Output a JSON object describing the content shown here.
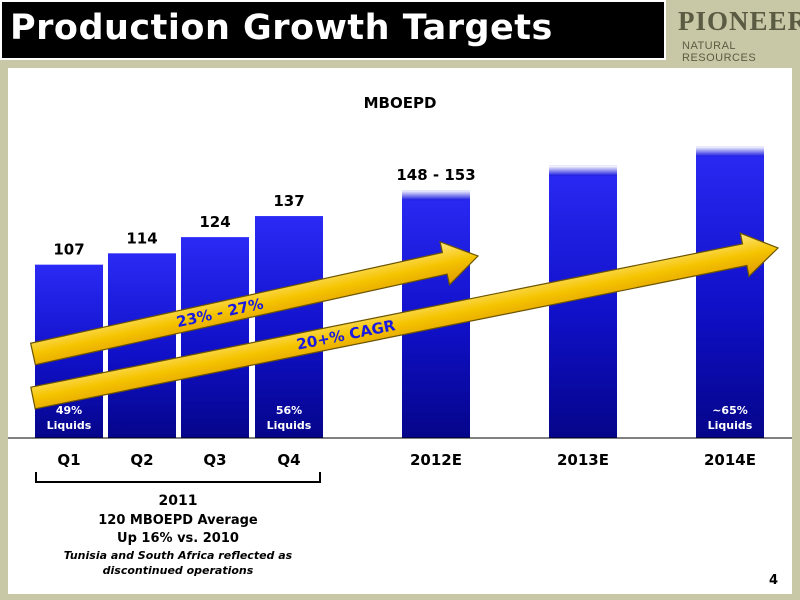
{
  "header": {
    "title": "Production Growth Targets",
    "logo_main": "PIONEER",
    "logo_sub": "NATURAL RESOURCES"
  },
  "chart_data": {
    "type": "bar",
    "title": "MBOEPD",
    "categories": [
      "Q1",
      "Q2",
      "Q3",
      "Q4",
      "2012E",
      "2013E",
      "2014E"
    ],
    "values": [
      107,
      114,
      124,
      137,
      153,
      168,
      180
    ],
    "value_labels": [
      "107",
      "114",
      "124",
      "137",
      "148 - 153",
      "",
      ""
    ],
    "range_2012E": [
      148,
      153
    ],
    "liquids_notes": [
      {
        "category": "Q1",
        "lines": [
          "49%",
          "Liquids"
        ]
      },
      {
        "category": "Q4",
        "lines": [
          "56%",
          "Liquids"
        ]
      },
      {
        "category": "2014E",
        "lines": [
          "~65%",
          "Liquids"
        ]
      }
    ],
    "annotations": [
      {
        "text": "23% - 27%",
        "from": "Q1",
        "to": "2012E"
      },
      {
        "text": "20+% CAGR",
        "from": "Q1",
        "to": "2014E"
      }
    ],
    "bar_color": "#1a1ae0",
    "arrow_color": "#f5c400"
  },
  "year_group": {
    "year": "2011",
    "line1": "120 MBOEPD Average",
    "line2": "Up 16% vs. 2010",
    "note1": "Tunisia and South Africa reflected as",
    "note2": "discontinued operations"
  },
  "page_number": "4"
}
